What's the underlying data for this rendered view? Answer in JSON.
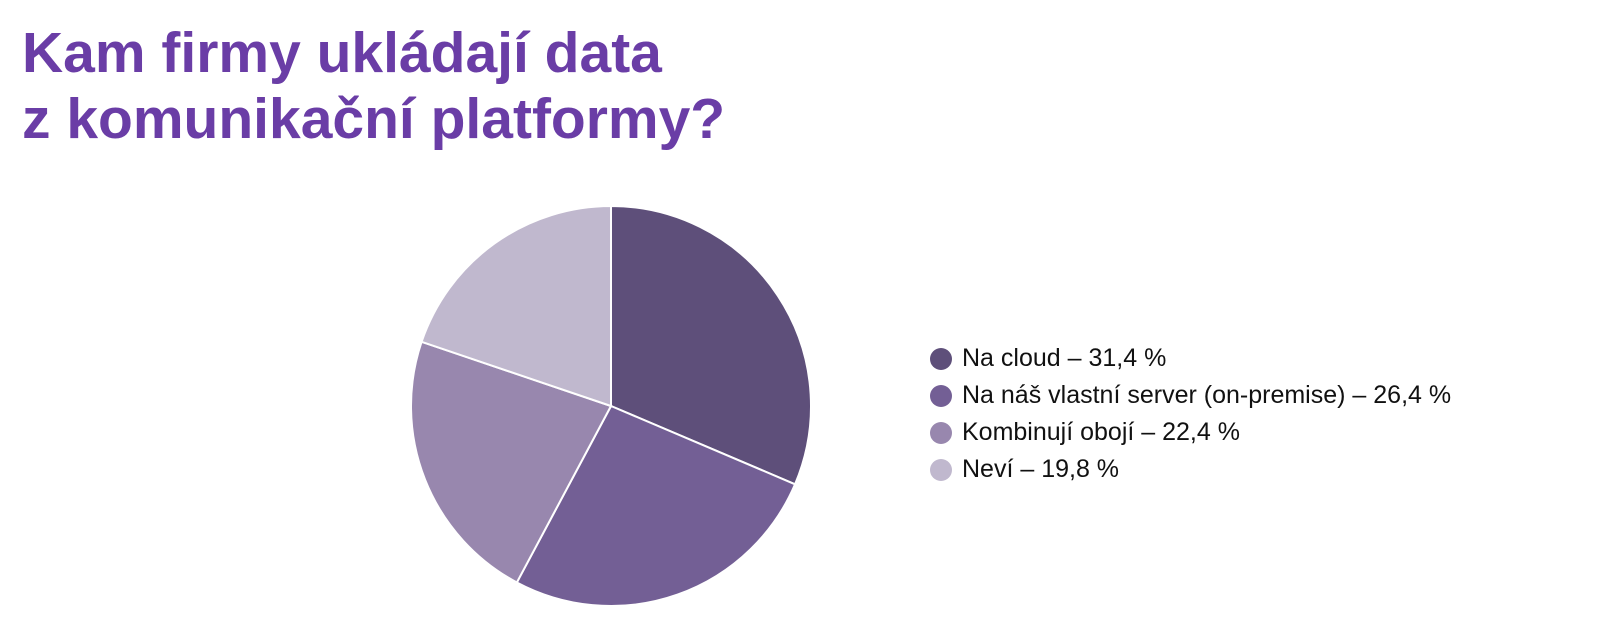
{
  "chart_data": {
    "type": "pie",
    "title_lines": [
      "Kam firmy ukládají data",
      "z komunikační platformy?"
    ],
    "slices": [
      {
        "label": "Na cloud",
        "value": 31.4,
        "color": "#5e4f7a",
        "legend_text": "Na cloud – 31,4 %"
      },
      {
        "label": "Na náš vlastní server (on-premise)",
        "value": 26.4,
        "color": "#735f95",
        "legend_text": "Na náš vlastní server (on-premise) – 26,4 %"
      },
      {
        "label": "Kombinují obojí",
        "value": 22.4,
        "color": "#9887ae",
        "legend_text": "Kombinují obojí – 22,4 %"
      },
      {
        "label": "Neví",
        "value": 19.8,
        "color": "#c0b8ce",
        "legend_text": "Neví – 19,8 %"
      }
    ],
    "unit": "%",
    "legend_position": "right"
  }
}
